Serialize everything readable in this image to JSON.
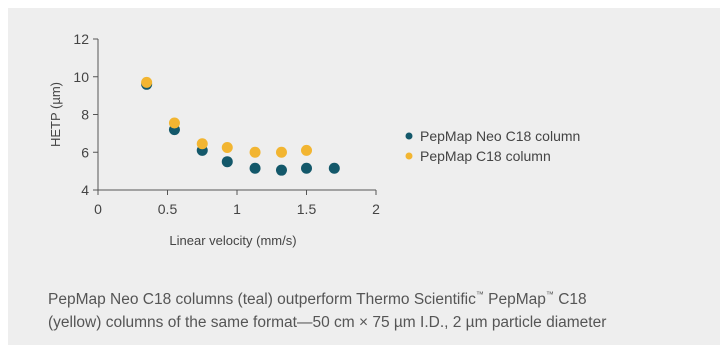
{
  "colors": {
    "background": "#eeeeee",
    "teal": "#13586a",
    "yellow": "#f2b531",
    "axis": "#555555",
    "text": "#444444"
  },
  "chart_data": {
    "type": "scatter",
    "xlabel": "Linear velocity (mm/s)",
    "ylabel": "HETP (µm)",
    "xlim": [
      0,
      2
    ],
    "ylim": [
      4,
      12
    ],
    "x_ticks": [
      "0",
      "0.5",
      "1",
      "1.5",
      "2"
    ],
    "y_ticks": [
      "4",
      "6",
      "8",
      "10",
      "12"
    ],
    "grid": false,
    "legend_position": "right",
    "series": [
      {
        "name": "PepMap Neo C18 column",
        "color": "#13586a",
        "x": [
          0.35,
          0.55,
          0.75,
          0.93,
          1.13,
          1.32,
          1.5,
          1.7
        ],
        "y": [
          9.6,
          7.2,
          6.1,
          5.5,
          5.15,
          5.05,
          5.15,
          5.15
        ]
      },
      {
        "name": "PepMap C18 column",
        "color": "#f2b531",
        "x": [
          0.35,
          0.55,
          0.75,
          0.93,
          1.13,
          1.32,
          1.5
        ],
        "y": [
          9.7,
          7.55,
          6.45,
          6.25,
          6.0,
          6.0,
          6.1
        ]
      }
    ]
  },
  "caption": {
    "line1_a": "PepMap Neo C18 columns (teal) outperform Thermo Scientific",
    "tm1": "™",
    "line1_b": " PepMap",
    "tm2": "™",
    "line1_c": " C18",
    "line2": "(yellow) columns of the same format—50 cm × 75 µm I.D., 2 µm particle diameter"
  }
}
